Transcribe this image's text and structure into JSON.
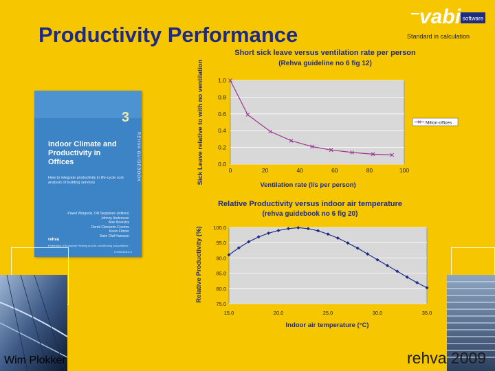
{
  "slide": {
    "title": "Productivity Performance",
    "standard_note": "Standard in calculation",
    "author": "Wim Plokker",
    "event": "rehva 2009",
    "logo": {
      "text": "vabi",
      "tag": "software"
    }
  },
  "book": {
    "number": "3",
    "vertical_text": "REHVA GUIDEBOOK",
    "title": "Indoor Climate and Productivity in Offices",
    "subtitle": "How to integrate productivity in life-cycle cost analysis of building services",
    "authors": [
      "Pawel Wargocki, Olli Seppänen (editors)",
      "Johnny Andersson",
      "Atze Boerstra",
      "Derek Clements-Croome",
      "Kevin Fitzner",
      "Stein Olaf Hanssen"
    ],
    "publisher": "rehva",
    "publisher_sub": "Federation of European Heating and Air-conditioning Associations",
    "isbn": "2-9600468-5-4"
  },
  "colors": {
    "background": "#f6c600",
    "title": "#1d2a86",
    "chart_title": "#1d2a86",
    "series1": "#9b3390",
    "series2": "#1d2a86",
    "plot_bg": "#d8d8d8"
  },
  "chart_data": [
    {
      "type": "line",
      "title": "Short sick leave versus ventilation rate per person",
      "subtitle": "(Rehva guideline no 6 fig 12)",
      "xlabel": "Ventilation rate (l/s per person)",
      "ylabel": "Sick Leave relative to with no ventilation",
      "xlim": [
        0,
        100
      ],
      "ylim": [
        0.0,
        1.0
      ],
      "xticks": [
        "0",
        "20",
        "40",
        "60",
        "80",
        "100"
      ],
      "yticks": [
        "0.0",
        "0.2",
        "0.4",
        "0.6",
        "0.8",
        "1.0"
      ],
      "grid": true,
      "legend": "right",
      "series": [
        {
          "name": "Milton-offices",
          "x": [
            0,
            10,
            23,
            35,
            47,
            58,
            70,
            82,
            93
          ],
          "values": [
            1.0,
            0.59,
            0.39,
            0.28,
            0.21,
            0.17,
            0.14,
            0.12,
            0.11
          ]
        }
      ]
    },
    {
      "type": "line",
      "title": "Relative Productivity versus indoor air temperature",
      "subtitle": "(rehva guidebook no 6 fig 20)",
      "xlabel": "Indoor air temperature (°C)",
      "ylabel": "Relative Productivity (%)",
      "xlim": [
        15.0,
        35.0
      ],
      "ylim": [
        75.0,
        100.0
      ],
      "xticks": [
        "15.0",
        "20.0",
        "25.0",
        "30.0",
        "35.0"
      ],
      "yticks": [
        "75.0",
        "80.0",
        "85.0",
        "90.0",
        "95.0",
        "100.0"
      ],
      "grid": true,
      "series": [
        {
          "x": [
            15,
            16,
            17,
            18,
            19,
            20,
            21,
            22,
            23,
            24,
            25,
            26,
            27,
            28,
            29,
            30,
            31,
            32,
            33,
            34,
            35
          ],
          "values": [
            91.0,
            93.3,
            95.3,
            96.9,
            98.1,
            99.0,
            99.6,
            99.9,
            99.6,
            98.9,
            97.8,
            96.5,
            94.9,
            93.2,
            91.3,
            89.4,
            87.5,
            85.6,
            83.7,
            81.9,
            80.2
          ]
        }
      ]
    }
  ]
}
